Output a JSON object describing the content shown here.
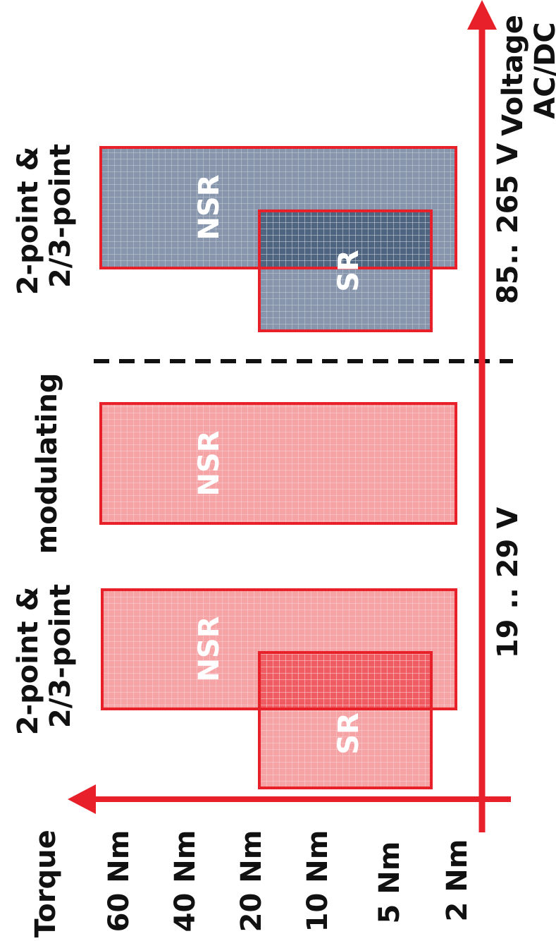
{
  "axis": {
    "torque_title": "Torque",
    "voltage_title": [
      "Voltage",
      "AC/DC"
    ]
  },
  "torque_ticks": [
    "60 Nm",
    "40 Nm",
    "20 Nm",
    "10 Nm",
    "5 Nm",
    "2 Nm"
  ],
  "voltage_ranges": [
    "19 .. 29 V",
    "85.. 265 V"
  ],
  "groups": [
    {
      "label": [
        "2-point &",
        "2/3-point"
      ],
      "voltage": "19 .. 29 V",
      "blocks": [
        {
          "label": "NSR",
          "torque_from": "2 Nm",
          "torque_to": "60 Nm"
        },
        {
          "label": "SR",
          "torque_from": "2 Nm",
          "torque_to": "20 Nm"
        }
      ]
    },
    {
      "label": [
        "modulating"
      ],
      "voltage": "19 .. 29 V",
      "blocks": [
        {
          "label": "NSR",
          "torque_from": "2 Nm",
          "torque_to": "60 Nm"
        }
      ]
    },
    {
      "label": [
        "2-point &",
        "2/3-point"
      ],
      "voltage": "85.. 265 V",
      "blocks": [
        {
          "label": "NSR",
          "torque_from": "2 Nm",
          "torque_to": "60 Nm"
        },
        {
          "label": "SR",
          "torque_from": "2 Nm",
          "torque_to": "20 Nm"
        }
      ]
    }
  ],
  "colors": {
    "axis_red": "#e8202a",
    "low_voltage_fill": "#f6a3a5",
    "low_voltage_overlap": "#ef5d63",
    "high_voltage_fill": "#8796ac",
    "high_voltage_overlap": "#4e6480",
    "grid_line": "#ffffff",
    "text": "#111111",
    "label_on_block": "#ffffff"
  }
}
